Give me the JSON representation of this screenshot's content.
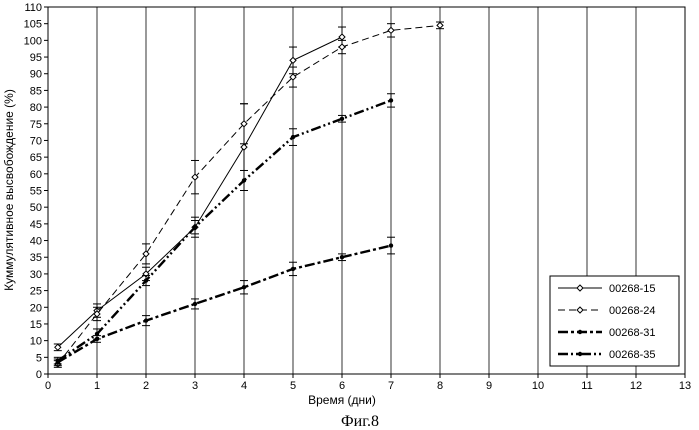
{
  "chart_data": {
    "type": "line",
    "title": "",
    "xlabel": "Время (дни)",
    "ylabel": "Куммулятивное высвобождение (%)",
    "caption": "Фиг.8",
    "xlim": [
      0,
      13
    ],
    "ylim": [
      0,
      110
    ],
    "xticks": [
      "0",
      "1",
      "2",
      "3",
      "4",
      "5",
      "6",
      "7",
      "8",
      "9",
      "10",
      "11",
      "12",
      "13"
    ],
    "yticks": [
      "0",
      "5",
      "10",
      "15",
      "20",
      "25",
      "30",
      "35",
      "40",
      "45",
      "50",
      "55",
      "60",
      "65",
      "70",
      "75",
      "80",
      "85",
      "90",
      "95",
      "100",
      "105",
      "110"
    ],
    "grid": "vertical",
    "legend": "bottom-right",
    "series": [
      {
        "name": "00268-15",
        "style": "solid-diamond",
        "x": [
          0.2,
          1,
          2,
          3,
          4,
          5,
          6
        ],
        "y": [
          8,
          19,
          30,
          44,
          68,
          94,
          101
        ],
        "err": [
          1,
          2,
          2,
          3,
          13,
          4,
          3
        ]
      },
      {
        "name": "00268-24",
        "style": "dashed-diamond",
        "x": [
          0.2,
          1,
          2,
          3,
          4,
          5,
          6,
          7,
          8
        ],
        "y": [
          3,
          18,
          36,
          59,
          75,
          89,
          98,
          103,
          104.5
        ],
        "err": [
          1,
          2,
          3,
          5,
          6,
          3,
          2,
          2,
          1
        ]
      },
      {
        "name": "00268-31",
        "style": "dashdot-heavy",
        "x": [
          0.2,
          1,
          2,
          3,
          4,
          5,
          6,
          7
        ],
        "y": [
          3.5,
          10.5,
          16,
          21,
          26,
          31.5,
          35,
          38.5
        ],
        "err": [
          1,
          1,
          1.5,
          1.5,
          2,
          2,
          1,
          2.5
        ]
      },
      {
        "name": "00268-35",
        "style": "dashdotdot-heavy",
        "x": [
          0.2,
          1,
          2,
          3,
          4,
          5,
          6,
          7
        ],
        "y": [
          4,
          12,
          28,
          44,
          58,
          71,
          76.5,
          82
        ],
        "err": [
          1,
          1.5,
          1.5,
          2,
          3,
          2.5,
          1,
          2
        ]
      }
    ]
  }
}
